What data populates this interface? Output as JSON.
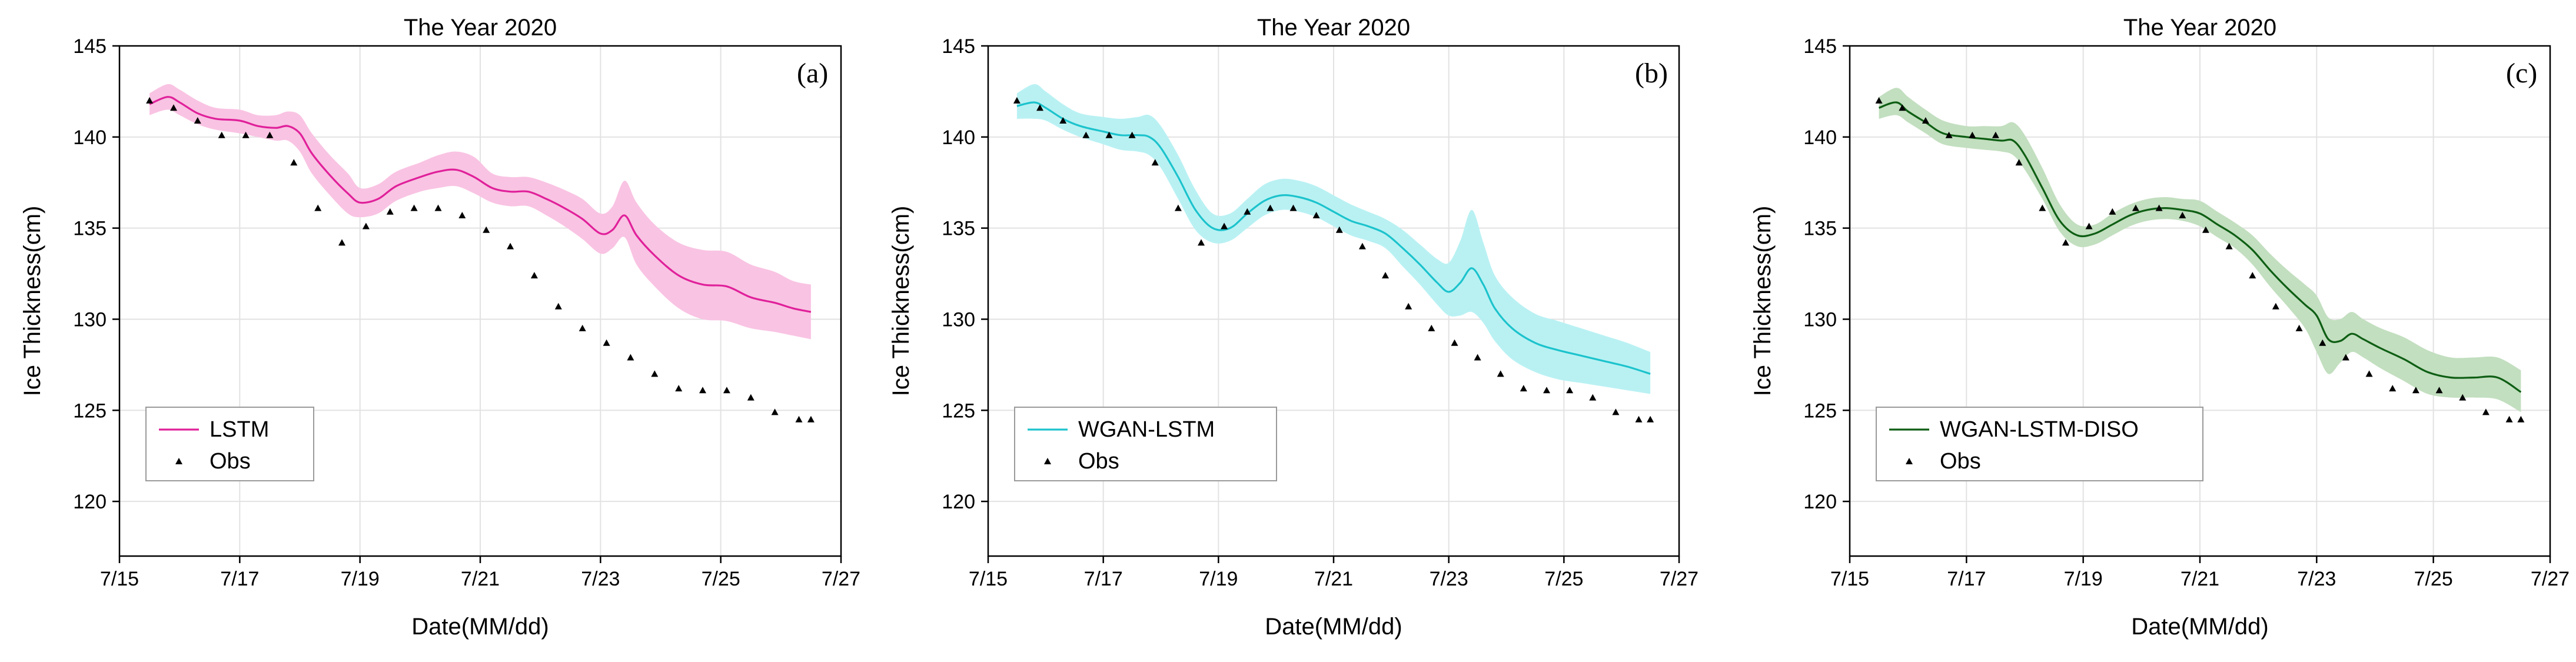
{
  "chart_data": [
    {
      "type": "line",
      "panel_label": "(a)",
      "title": "The Year 2020",
      "xlabel": "Date(MM/dd)",
      "ylabel": "Ice Thickness(cm)",
      "xlim": [
        15,
        27
      ],
      "ylim": [
        117,
        145
      ],
      "xticks": [
        15,
        17,
        19,
        21,
        23,
        25,
        27
      ],
      "xtick_labels": [
        "7/15",
        "7/17",
        "7/19",
        "7/21",
        "7/23",
        "7/25",
        "7/27"
      ],
      "yticks": [
        120,
        125,
        130,
        135,
        140,
        145
      ],
      "ytick_labels": [
        "120",
        "125",
        "130",
        "135",
        "140",
        "145"
      ],
      "grid": true,
      "legend": {
        "location": "lower-left",
        "entries": [
          "LSTM",
          "Obs"
        ]
      },
      "colors": {
        "line": "#e0209a",
        "band": "#f9c3e3"
      },
      "model_series": {
        "name": "LSTM",
        "x": [
          15.5,
          15.8,
          16.0,
          16.3,
          16.6,
          17.0,
          17.3,
          17.6,
          17.8,
          18.0,
          18.2,
          18.5,
          18.8,
          19.0,
          19.3,
          19.6,
          20.0,
          20.3,
          20.6,
          20.9,
          21.2,
          21.5,
          21.8,
          22.1,
          22.4,
          22.7,
          23.0,
          23.2,
          23.4,
          23.6,
          23.9,
          24.3,
          24.7,
          25.1,
          25.5,
          25.9,
          26.2,
          26.5
        ],
        "y": [
          141.8,
          142.2,
          141.9,
          141.3,
          141.0,
          140.9,
          140.6,
          140.5,
          140.6,
          140.2,
          139.1,
          137.9,
          136.9,
          136.4,
          136.6,
          137.3,
          137.8,
          138.1,
          138.2,
          137.8,
          137.2,
          137.0,
          137.0,
          136.6,
          136.1,
          135.5,
          134.7,
          134.9,
          135.7,
          134.6,
          133.5,
          132.4,
          131.9,
          131.8,
          131.2,
          130.9,
          130.6,
          130.4
        ],
        "band_low": [
          141.2,
          141.5,
          141.2,
          140.7,
          140.4,
          140.2,
          140.0,
          139.8,
          139.8,
          139.2,
          138.0,
          136.8,
          135.8,
          135.6,
          135.8,
          136.5,
          137.0,
          137.2,
          137.3,
          136.9,
          136.4,
          136.2,
          136.2,
          135.7,
          135.1,
          134.4,
          133.6,
          133.9,
          134.5,
          133.0,
          131.8,
          130.6,
          130.0,
          129.9,
          129.5,
          129.3,
          129.1,
          128.9
        ],
        "band_high": [
          142.4,
          142.9,
          142.6,
          142.0,
          141.6,
          141.5,
          141.2,
          141.2,
          141.4,
          141.2,
          140.2,
          139.0,
          138.0,
          137.2,
          137.4,
          138.1,
          138.6,
          139.0,
          139.2,
          138.9,
          138.0,
          137.8,
          137.8,
          137.5,
          137.1,
          136.6,
          135.8,
          136.2,
          137.6,
          136.4,
          135.2,
          134.2,
          133.8,
          133.7,
          133.0,
          132.6,
          132.1,
          131.9
        ]
      },
      "obs_series": {
        "name": "Obs",
        "x": [
          15.5,
          15.9,
          16.3,
          16.7,
          17.1,
          17.5,
          17.9,
          18.3,
          18.7,
          19.1,
          19.5,
          19.9,
          20.3,
          20.7,
          21.1,
          21.5,
          21.9,
          22.3,
          22.7,
          23.1,
          23.5,
          23.9,
          24.3,
          24.7,
          25.1,
          25.5,
          25.9,
          26.3,
          26.5
        ],
        "y": [
          142.0,
          141.6,
          140.9,
          140.1,
          140.1,
          140.1,
          138.6,
          136.1,
          134.2,
          135.1,
          135.9,
          136.1,
          136.1,
          135.7,
          134.9,
          134.0,
          132.4,
          130.7,
          129.5,
          128.7,
          127.9,
          127.0,
          126.2,
          126.1,
          126.1,
          125.7,
          124.9,
          124.5,
          124.5
        ]
      }
    },
    {
      "type": "line",
      "panel_label": "(b)",
      "title": "The Year 2020",
      "xlabel": "Date(MM/dd)",
      "ylabel": "Ice Thickness(cm)",
      "xlim": [
        15,
        27
      ],
      "ylim": [
        117,
        145
      ],
      "xticks": [
        15,
        17,
        19,
        21,
        23,
        25,
        27
      ],
      "xtick_labels": [
        "7/15",
        "7/17",
        "7/19",
        "7/21",
        "7/23",
        "7/25",
        "7/27"
      ],
      "yticks": [
        120,
        125,
        130,
        135,
        140,
        145
      ],
      "ytick_labels": [
        "120",
        "125",
        "130",
        "135",
        "140",
        "145"
      ],
      "grid": true,
      "legend": {
        "location": "lower-left",
        "entries": [
          "WGAN-LSTM",
          "Obs"
        ]
      },
      "colors": {
        "line": "#1cc3cc",
        "band": "#b9f1f3"
      },
      "model_series": {
        "name": "WGAN-LSTM",
        "x": [
          15.5,
          15.8,
          16.0,
          16.3,
          16.6,
          17.0,
          17.3,
          17.6,
          17.8,
          18.0,
          18.3,
          18.6,
          18.9,
          19.2,
          19.5,
          19.8,
          20.1,
          20.4,
          20.7,
          21.0,
          21.3,
          21.6,
          21.9,
          22.2,
          22.5,
          22.8,
          23.0,
          23.2,
          23.4,
          23.6,
          23.8,
          24.1,
          24.5,
          24.9,
          25.3,
          25.7,
          26.1,
          26.5
        ],
        "y": [
          141.7,
          141.9,
          141.6,
          141.0,
          140.6,
          140.3,
          140.1,
          140.1,
          140.0,
          139.4,
          137.8,
          136.0,
          135.0,
          135.0,
          135.8,
          136.5,
          136.8,
          136.7,
          136.4,
          135.9,
          135.4,
          135.1,
          134.7,
          133.9,
          133.0,
          132.0,
          131.5,
          132.0,
          132.8,
          131.9,
          130.6,
          129.5,
          128.7,
          128.3,
          128.0,
          127.7,
          127.4,
          127.0
        ],
        "band_low": [
          141.0,
          141.0,
          140.9,
          140.4,
          140.0,
          139.6,
          139.3,
          139.2,
          139.0,
          138.3,
          136.6,
          134.9,
          134.2,
          134.3,
          135.0,
          135.7,
          136.0,
          135.9,
          135.6,
          135.1,
          134.6,
          134.3,
          133.9,
          132.9,
          131.9,
          130.8,
          130.2,
          130.2,
          130.4,
          129.8,
          128.8,
          127.8,
          127.1,
          126.7,
          126.5,
          126.3,
          126.1,
          125.9
        ],
        "band_high": [
          142.4,
          142.9,
          142.5,
          141.8,
          141.3,
          141.1,
          141.0,
          141.1,
          141.2,
          140.6,
          139.0,
          137.1,
          135.8,
          135.8,
          136.6,
          137.4,
          137.7,
          137.6,
          137.3,
          136.8,
          136.3,
          135.9,
          135.5,
          134.9,
          134.1,
          133.3,
          133.1,
          134.3,
          136.0,
          134.2,
          132.4,
          131.2,
          130.3,
          129.9,
          129.5,
          129.1,
          128.7,
          128.2
        ]
      },
      "obs_series": {
        "name": "Obs",
        "x": [
          15.5,
          15.9,
          16.3,
          16.7,
          17.1,
          17.5,
          17.9,
          18.3,
          18.7,
          19.1,
          19.5,
          19.9,
          20.3,
          20.7,
          21.1,
          21.5,
          21.9,
          22.3,
          22.7,
          23.1,
          23.5,
          23.9,
          24.3,
          24.7,
          25.1,
          25.5,
          25.9,
          26.3,
          26.5
        ],
        "y": [
          142.0,
          141.6,
          140.9,
          140.1,
          140.1,
          140.1,
          138.6,
          136.1,
          134.2,
          135.1,
          135.9,
          136.1,
          136.1,
          135.7,
          134.9,
          134.0,
          132.4,
          130.7,
          129.5,
          128.7,
          127.9,
          127.0,
          126.2,
          126.1,
          126.1,
          125.7,
          124.9,
          124.5,
          124.5
        ]
      }
    },
    {
      "type": "line",
      "panel_label": "(c)",
      "title": "The Year 2020",
      "xlabel": "Date(MM/dd)",
      "ylabel": "Ice Thickness(cm)",
      "xlim": [
        15,
        27
      ],
      "ylim": [
        117,
        145
      ],
      "xticks": [
        15,
        17,
        19,
        21,
        23,
        25,
        27
      ],
      "xtick_labels": [
        "7/15",
        "7/17",
        "7/19",
        "7/21",
        "7/23",
        "7/25",
        "7/27"
      ],
      "yticks": [
        120,
        125,
        130,
        135,
        140,
        145
      ],
      "ytick_labels": [
        "120",
        "125",
        "130",
        "135",
        "140",
        "145"
      ],
      "grid": true,
      "legend": {
        "location": "lower-left",
        "entries": [
          "WGAN-LSTM-DISO",
          "Obs"
        ]
      },
      "colors": {
        "line": "#0e5e14",
        "band": "#c2dfbf"
      },
      "model_series": {
        "name": "WGAN-LSTM-DISO",
        "x": [
          15.5,
          15.8,
          16.0,
          16.3,
          16.6,
          17.0,
          17.3,
          17.6,
          17.8,
          18.0,
          18.3,
          18.6,
          18.9,
          19.2,
          19.5,
          19.8,
          20.1,
          20.4,
          20.7,
          21.0,
          21.3,
          21.6,
          21.9,
          22.2,
          22.5,
          22.8,
          23.0,
          23.2,
          23.4,
          23.6,
          23.8,
          24.1,
          24.5,
          24.9,
          25.3,
          25.7,
          26.1,
          26.5
        ],
        "y": [
          141.6,
          141.9,
          141.4,
          140.8,
          140.2,
          140.0,
          139.9,
          139.8,
          139.8,
          139.0,
          137.2,
          135.4,
          134.6,
          134.7,
          135.2,
          135.7,
          136.0,
          136.1,
          136.0,
          135.8,
          135.2,
          134.6,
          133.8,
          132.7,
          131.7,
          130.8,
          130.2,
          128.9,
          128.8,
          129.2,
          128.9,
          128.4,
          127.8,
          127.1,
          126.8,
          126.8,
          126.8,
          126.0
        ],
        "band_low": [
          141.0,
          141.2,
          140.8,
          140.2,
          139.6,
          139.4,
          139.3,
          139.2,
          139.0,
          138.2,
          136.6,
          134.8,
          134.0,
          134.1,
          134.6,
          135.1,
          135.4,
          135.5,
          135.4,
          135.1,
          134.5,
          133.9,
          133.0,
          131.8,
          130.7,
          129.5,
          128.2,
          127.0,
          127.6,
          128.2,
          127.9,
          127.3,
          126.6,
          125.9,
          125.7,
          125.7,
          125.6,
          124.9
        ],
        "band_high": [
          142.2,
          142.7,
          142.2,
          141.5,
          140.9,
          140.6,
          140.6,
          140.6,
          140.8,
          140.1,
          138.3,
          136.3,
          135.2,
          135.2,
          135.8,
          136.3,
          136.6,
          136.7,
          136.6,
          136.5,
          135.9,
          135.3,
          134.6,
          133.6,
          132.7,
          131.9,
          131.3,
          130.1,
          130.0,
          130.4,
          130.0,
          129.5,
          129.0,
          128.3,
          127.9,
          127.9,
          127.9,
          127.2
        ]
      },
      "obs_series": {
        "name": "Obs",
        "x": [
          15.5,
          15.9,
          16.3,
          16.7,
          17.1,
          17.5,
          17.9,
          18.3,
          18.7,
          19.1,
          19.5,
          19.9,
          20.3,
          20.7,
          21.1,
          21.5,
          21.9,
          22.3,
          22.7,
          23.1,
          23.5,
          23.9,
          24.3,
          24.7,
          25.1,
          25.5,
          25.9,
          26.3,
          26.5
        ],
        "y": [
          142.0,
          141.6,
          140.9,
          140.1,
          140.1,
          140.1,
          138.6,
          136.1,
          134.2,
          135.1,
          135.9,
          136.1,
          136.1,
          135.7,
          134.9,
          134.0,
          132.4,
          130.7,
          129.5,
          128.7,
          127.9,
          127.0,
          126.2,
          126.1,
          126.1,
          125.7,
          124.9,
          124.5,
          124.5
        ]
      }
    }
  ]
}
